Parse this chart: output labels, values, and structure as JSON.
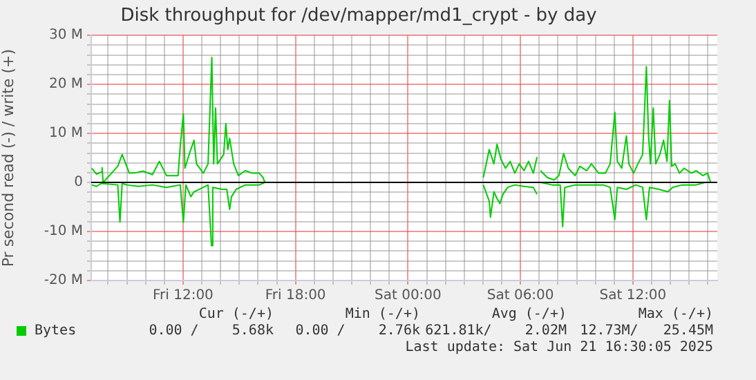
{
  "chart_data": {
    "type": "line",
    "title": "Disk throughput for /dev/mapper/md1_crypt - by day",
    "ylabel": "Pr second read (-) / write (+)",
    "xlim": [
      "2025-06-20T07:06",
      "2025-06-21T16:30"
    ],
    "xticks": [
      {
        "value": "2025-06-20T08:00",
        "label": null
      },
      {
        "value": "2025-06-20T09:00",
        "label": null
      },
      {
        "value": "2025-06-20T10:00",
        "label": null
      },
      {
        "value": "2025-06-20T11:00",
        "label": null
      },
      {
        "value": "2025-06-20T12:00",
        "label": "Fri 12:00"
      },
      {
        "value": "2025-06-20T13:00",
        "label": null
      },
      {
        "value": "2025-06-20T14:00",
        "label": null
      },
      {
        "value": "2025-06-20T15:00",
        "label": null
      },
      {
        "value": "2025-06-20T16:00",
        "label": null
      },
      {
        "value": "2025-06-20T17:00",
        "label": null
      },
      {
        "value": "2025-06-20T18:00",
        "label": "Fri 18:00"
      },
      {
        "value": "2025-06-20T19:00",
        "label": null
      },
      {
        "value": "2025-06-20T20:00",
        "label": null
      },
      {
        "value": "2025-06-20T21:00",
        "label": null
      },
      {
        "value": "2025-06-20T22:00",
        "label": null
      },
      {
        "value": "2025-06-20T23:00",
        "label": null
      },
      {
        "value": "2025-06-21T00:00",
        "label": "Sat 00:00"
      },
      {
        "value": "2025-06-21T01:00",
        "label": null
      },
      {
        "value": "2025-06-21T02:00",
        "label": null
      },
      {
        "value": "2025-06-21T03:00",
        "label": null
      },
      {
        "value": "2025-06-21T04:00",
        "label": null
      },
      {
        "value": "2025-06-21T05:00",
        "label": null
      },
      {
        "value": "2025-06-21T06:00",
        "label": "Sat 06:00"
      },
      {
        "value": "2025-06-21T07:00",
        "label": null
      },
      {
        "value": "2025-06-21T08:00",
        "label": null
      },
      {
        "value": "2025-06-21T09:00",
        "label": null
      },
      {
        "value": "2025-06-21T10:00",
        "label": null
      },
      {
        "value": "2025-06-21T11:00",
        "label": null
      },
      {
        "value": "2025-06-21T12:00",
        "label": "Sat 12:00"
      },
      {
        "value": "2025-06-21T13:00",
        "label": null
      },
      {
        "value": "2025-06-21T14:00",
        "label": null
      },
      {
        "value": "2025-06-21T15:00",
        "label": null
      },
      {
        "value": "2025-06-21T16:00",
        "label": null
      }
    ],
    "ylim": [
      -20,
      30
    ],
    "yticks": [
      {
        "value": -20,
        "label": "-20 M"
      },
      {
        "value": -18,
        "label": null
      },
      {
        "value": -16,
        "label": null
      },
      {
        "value": -14,
        "label": null
      },
      {
        "value": -12,
        "label": null
      },
      {
        "value": -10,
        "label": "-10 M"
      },
      {
        "value": -8,
        "label": null
      },
      {
        "value": -6,
        "label": null
      },
      {
        "value": -4,
        "label": null
      },
      {
        "value": -2,
        "label": null
      },
      0,
      {
        "value": 2,
        "label": null
      },
      {
        "value": 4,
        "label": null
      },
      {
        "value": 6,
        "label": null
      },
      {
        "value": 8,
        "label": null
      },
      {
        "value": 10,
        "label": "10 M"
      },
      {
        "value": 12,
        "label": null
      },
      {
        "value": 14,
        "label": null
      },
      {
        "value": 16,
        "label": null
      },
      {
        "value": 18,
        "label": null
      },
      {
        "value": 20,
        "label": "20 M"
      },
      {
        "value": 22,
        "label": null
      },
      {
        "value": 24,
        "label": null
      },
      {
        "value": 26,
        "label": null
      },
      {
        "value": 28,
        "label": null
      },
      {
        "value": 30,
        "label": "30 M"
      }
    ],
    "grid": true,
    "legend": "bottom",
    "marker": "none",
    "line_style": "solid",
    "ref_lines": [
      {
        "axis": "y",
        "value": 0,
        "color": "#000000"
      }
    ],
    "series": [
      {
        "name": "Bytes",
        "color": "#00cc00",
        "x": [
          "2025-06-20T07:08",
          "2025-06-20T07:23",
          "2025-06-20T07:38",
          "2025-06-20T07:41",
          "2025-06-20T07:44",
          "2025-06-20T08:31",
          "2025-06-20T08:45",
          "2025-06-20T09:08",
          "2025-06-20T09:30",
          "2025-06-20T09:52",
          "2025-06-20T10:22",
          "2025-06-20T10:44",
          "2025-06-20T11:07",
          "2025-06-20T11:44",
          "2025-06-20T11:51",
          "2025-06-20T12:01",
          "2025-06-20T12:06",
          "2025-06-20T12:21",
          "2025-06-20T12:35",
          "2025-06-20T12:43",
          "2025-06-20T13:05",
          "2025-06-20T13:20",
          "2025-06-20T13:32",
          "2025-06-20T13:38",
          "2025-06-20T13:44",
          "2025-06-20T13:50",
          "2025-06-20T14:10",
          "2025-06-20T14:17",
          "2025-06-20T14:23",
          "2025-06-20T14:29",
          "2025-06-20T14:42",
          "2025-06-20T14:57",
          "2025-06-20T15:19",
          "2025-06-20T15:41",
          "2025-06-20T16:04",
          "2025-06-20T16:16",
          "2025-06-20T16:22",
          "2025-06-20T22:00",
          "2025-06-21T04:01",
          "2025-06-21T04:20",
          "2025-06-21T04:35",
          "2025-06-21T04:45",
          "2025-06-21T04:57",
          "2025-06-21T05:12",
          "2025-06-21T05:27",
          "2025-06-21T05:42",
          "2025-06-21T05:56",
          "2025-06-21T06:11",
          "2025-06-21T06:26",
          "2025-06-21T06:41",
          "2025-06-21T06:53",
          "2025-06-21T07:00",
          "2025-06-21T07:04",
          "2025-06-21T07:26",
          "2025-06-21T07:48",
          "2025-06-21T08:03",
          "2025-06-21T08:18",
          "2025-06-21T08:33",
          "2025-06-21T08:55",
          "2025-06-21T09:10",
          "2025-06-21T09:32",
          "2025-06-21T09:47",
          "2025-06-21T10:10",
          "2025-06-21T10:32",
          "2025-06-21T10:47",
          "2025-06-21T11:02",
          "2025-06-21T11:10",
          "2025-06-21T11:24",
          "2025-06-21T11:39",
          "2025-06-21T11:47",
          "2025-06-21T12:02",
          "2025-06-21T12:16",
          "2025-06-21T12:31",
          "2025-06-21T12:43",
          "2025-06-21T12:50",
          "2025-06-21T12:56",
          "2025-06-21T13:05",
          "2025-06-21T13:13",
          "2025-06-21T13:26",
          "2025-06-21T13:38",
          "2025-06-21T13:49",
          "2025-06-21T13:57",
          "2025-06-21T14:04",
          "2025-06-21T14:15",
          "2025-06-21T14:29",
          "2025-06-21T14:44",
          "2025-06-21T15:07",
          "2025-06-21T15:22",
          "2025-06-21T15:44",
          "2025-06-21T15:59",
          "2025-06-21T16:06",
          "2025-06-21T16:09"
        ],
        "values": [
          2.9,
          1.7,
          2.1,
          3.0,
          0,
          3.3,
          5.7,
          1.9,
          2.0,
          2.3,
          1.6,
          4.3,
          1.4,
          1.4,
          7.4,
          14.0,
          2.9,
          6.0,
          8.6,
          3.8,
          1.9,
          3.8,
          25.5,
          3.8,
          15.2,
          3.8,
          5.7,
          12.0,
          6.7,
          9.0,
          3.8,
          1.4,
          2.4,
          1.9,
          1.9,
          1.0,
          0,
          null,
          1.0,
          6.7,
          3.8,
          7.8,
          4.8,
          2.9,
          4.3,
          1.9,
          3.8,
          2.4,
          4.3,
          1.9,
          5.2,
          null,
          2.4,
          1.0,
          0.5,
          1.4,
          5.9,
          2.9,
          1.4,
          3.3,
          2.4,
          3.8,
          1.9,
          1.9,
          3.8,
          14.3,
          4.3,
          2.9,
          9.5,
          3.8,
          1.9,
          3.8,
          5.7,
          23.6,
          9.5,
          3.8,
          15.2,
          3.8,
          5.7,
          8.6,
          4.3,
          16.7,
          3.3,
          3.8,
          1.9,
          2.9,
          1.9,
          2.4,
          1.4,
          1.9,
          0.5,
          0
        ]
      },
      {
        "color": "#00cc00",
        "x": [
          "2025-06-20T07:08",
          "2025-06-20T07:23",
          "2025-06-20T07:38",
          "2025-06-20T08:31",
          "2025-06-20T08:38",
          "2025-06-20T08:45",
          "2025-06-20T09:00",
          "2025-06-20T09:37",
          "2025-06-20T10:22",
          "2025-06-20T11:07",
          "2025-06-20T11:51",
          "2025-06-20T12:01",
          "2025-06-20T12:09",
          "2025-06-20T12:25",
          "2025-06-20T12:35",
          "2025-06-20T13:05",
          "2025-06-20T13:20",
          "2025-06-20T13:31",
          "2025-06-20T13:35",
          "2025-06-20T14:05",
          "2025-06-20T14:20",
          "2025-06-20T14:29",
          "2025-06-20T14:35",
          "2025-06-20T14:50",
          "2025-06-20T15:19",
          "2025-06-20T16:04",
          "2025-06-20T16:22",
          "2025-06-20T22:00",
          "2025-06-21T04:01",
          "2025-06-21T04:20",
          "2025-06-21T04:24",
          "2025-06-21T04:35",
          "2025-06-21T04:45",
          "2025-06-21T04:54",
          "2025-06-21T05:04",
          "2025-06-21T05:19",
          "2025-06-21T05:42",
          "2025-06-21T06:11",
          "2025-06-21T06:41",
          "2025-06-21T06:53",
          "2025-06-21T07:00",
          "2025-06-21T07:04",
          "2025-06-21T07:41",
          "2025-06-21T08:07",
          "2025-06-21T08:15",
          "2025-06-21T08:22",
          "2025-06-21T08:55",
          "2025-06-21T09:40",
          "2025-06-21T10:25",
          "2025-06-21T10:47",
          "2025-06-21T11:02",
          "2025-06-21T11:10",
          "2025-06-21T11:39",
          "2025-06-21T12:09",
          "2025-06-21T12:31",
          "2025-06-21T12:43",
          "2025-06-21T12:53",
          "2025-06-21T13:23",
          "2025-06-21T13:52",
          "2025-06-21T14:07",
          "2025-06-21T14:37",
          "2025-06-21T15:22",
          "2025-06-21T15:51",
          "2025-06-21T16:09"
        ],
        "values": [
          -0.5,
          -0.8,
          -0.2,
          -0.5,
          -8.1,
          -0.2,
          -0.5,
          -0.8,
          -0.5,
          -1.0,
          -0.5,
          -8.1,
          -0.5,
          -2.9,
          -1.9,
          -1.0,
          -0.5,
          -12.9,
          -1.0,
          -1.4,
          -1.4,
          -5.5,
          -2.9,
          -1.4,
          -0.5,
          -0.5,
          0,
          null,
          -0.5,
          -3.8,
          -7.1,
          -1.9,
          -3.3,
          -4.3,
          -2.4,
          -1.0,
          -0.5,
          -0.8,
          -1.0,
          -2.4,
          null,
          0,
          -0.5,
          -0.5,
          -9.0,
          -1.0,
          -0.5,
          -0.5,
          -0.5,
          -1.0,
          -7.6,
          -1.0,
          -1.4,
          -0.5,
          -1.0,
          -7.6,
          -1.0,
          -1.4,
          -1.9,
          -1.0,
          -0.5,
          -0.5,
          0,
          0
        ]
      }
    ],
    "annotations": [
      "Cur (-/+)",
      "Min (-/+)",
      "Avg (-/+)",
      "Max (-/+)",
      "0.00 /    5.68k",
      "0.00 /    2.76k",
      "621.81k/    2.02M",
      "12.73M/   25.45M",
      "Last update: Sat Jun 21 16:30:05 2025"
    ]
  }
}
